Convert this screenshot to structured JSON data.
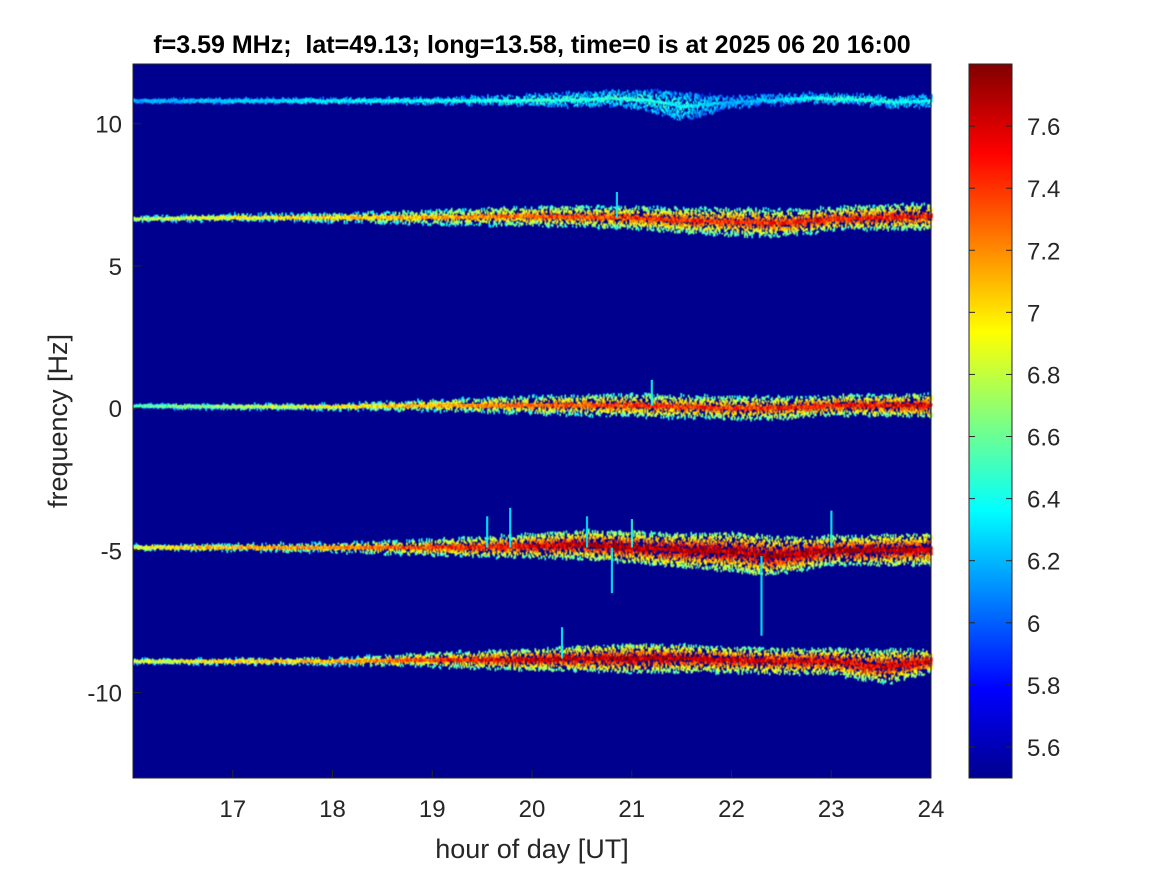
{
  "chart_data": {
    "type": "heatmap",
    "title": "f=3.59 MHz;  lat=49.13; long=13.58, time=0 is at 2025 06 20 16:00",
    "xlabel": "hour of day [UT]",
    "ylabel": "frequency [Hz]",
    "xlim": [
      16,
      24
    ],
    "ylim": [
      -13,
      12.1
    ],
    "xticks": [
      "17",
      "18",
      "19",
      "20",
      "21",
      "22",
      "23",
      "24"
    ],
    "yticks": [
      "-10",
      "-5",
      "0",
      "5",
      "10"
    ],
    "colormap": "jet",
    "background_color": "#00008f",
    "colorbar": {
      "range": [
        5.5,
        7.8
      ],
      "ticks": [
        "5.6",
        "5.8",
        "6",
        "6.2",
        "6.4",
        "6.6",
        "6.8",
        "7",
        "7.2",
        "7.4",
        "7.6"
      ]
    },
    "traces": [
      {
        "center_hz": 10.8,
        "points": [
          [
            16,
            10.8
          ],
          [
            17,
            10.8
          ],
          [
            18,
            10.8
          ],
          [
            19,
            10.8
          ],
          [
            20,
            10.82
          ],
          [
            20.5,
            10.85
          ],
          [
            20.8,
            10.9
          ],
          [
            21.2,
            10.8
          ],
          [
            21.5,
            10.6
          ],
          [
            21.8,
            10.7
          ],
          [
            22.2,
            10.8
          ],
          [
            22.8,
            10.9
          ],
          [
            23.3,
            10.85
          ],
          [
            23.6,
            10.75
          ],
          [
            24,
            10.8
          ]
        ],
        "intensity": [
          [
            16,
            6.2
          ],
          [
            17,
            6.3
          ],
          [
            18,
            6.4
          ],
          [
            19,
            6.4
          ],
          [
            20,
            6.5
          ],
          [
            21,
            6.5
          ],
          [
            21.6,
            6.4
          ],
          [
            22,
            6.2
          ],
          [
            22.5,
            6.3
          ],
          [
            23,
            6.5
          ],
          [
            24,
            6.4
          ]
        ],
        "width_hz": [
          [
            16,
            0.05
          ],
          [
            19,
            0.1
          ],
          [
            21,
            0.3
          ],
          [
            21.5,
            0.5
          ],
          [
            22,
            0.2
          ],
          [
            23,
            0.15
          ],
          [
            24,
            0.2
          ]
        ]
      },
      {
        "center_hz": 6.7,
        "points": [
          [
            16,
            6.65
          ],
          [
            17,
            6.7
          ],
          [
            18,
            6.7
          ],
          [
            19,
            6.7
          ],
          [
            20,
            6.75
          ],
          [
            21,
            6.7
          ],
          [
            21.5,
            6.6
          ],
          [
            22,
            6.55
          ],
          [
            22.5,
            6.5
          ],
          [
            23,
            6.65
          ],
          [
            23.5,
            6.7
          ],
          [
            24,
            6.75
          ]
        ],
        "intensity": [
          [
            16,
            6.8
          ],
          [
            17,
            7.0
          ],
          [
            18,
            7.1
          ],
          [
            19,
            7.2
          ],
          [
            20,
            7.4
          ],
          [
            21,
            7.5
          ],
          [
            22,
            7.5
          ],
          [
            23,
            7.6
          ],
          [
            24,
            7.6
          ]
        ],
        "width_hz": [
          [
            16,
            0.08
          ],
          [
            18,
            0.15
          ],
          [
            19.5,
            0.3
          ],
          [
            21,
            0.4
          ],
          [
            22.3,
            0.5
          ],
          [
            23,
            0.4
          ],
          [
            24,
            0.45
          ]
        ]
      },
      {
        "center_hz": 0.1,
        "points": [
          [
            16,
            0.08
          ],
          [
            17,
            0.05
          ],
          [
            18,
            0.05
          ],
          [
            19,
            0.1
          ],
          [
            20,
            0.1
          ],
          [
            21,
            0.1
          ],
          [
            21.5,
            0.05
          ],
          [
            22,
            0.0
          ],
          [
            22.5,
            0.0
          ],
          [
            23,
            0.1
          ],
          [
            24,
            0.1
          ]
        ],
        "intensity": [
          [
            16,
            6.6
          ],
          [
            17,
            6.8
          ],
          [
            18,
            7.0
          ],
          [
            19,
            7.2
          ],
          [
            20,
            7.4
          ],
          [
            21,
            7.5
          ],
          [
            22,
            7.5
          ],
          [
            23,
            7.6
          ],
          [
            24,
            7.7
          ]
        ],
        "width_hz": [
          [
            16,
            0.06
          ],
          [
            18,
            0.1
          ],
          [
            19.5,
            0.25
          ],
          [
            21,
            0.4
          ],
          [
            22.3,
            0.4
          ],
          [
            23,
            0.35
          ],
          [
            24,
            0.4
          ]
        ]
      },
      {
        "center_hz": -4.9,
        "points": [
          [
            16,
            -4.9
          ],
          [
            17,
            -4.9
          ],
          [
            18,
            -4.9
          ],
          [
            19,
            -4.9
          ],
          [
            20,
            -4.85
          ],
          [
            20.5,
            -4.8
          ],
          [
            21,
            -4.9
          ],
          [
            21.5,
            -5.0
          ],
          [
            22,
            -5.05
          ],
          [
            22.4,
            -5.2
          ],
          [
            23,
            -5.0
          ],
          [
            23.5,
            -5.0
          ],
          [
            24,
            -4.95
          ]
        ],
        "intensity": [
          [
            16,
            7.0
          ],
          [
            17,
            7.2
          ],
          [
            18,
            7.3
          ],
          [
            19,
            7.5
          ],
          [
            20,
            7.7
          ],
          [
            21,
            7.8
          ],
          [
            22,
            7.8
          ],
          [
            23,
            7.8
          ],
          [
            24,
            7.8
          ]
        ],
        "width_hz": [
          [
            16,
            0.08
          ],
          [
            18,
            0.15
          ],
          [
            19.5,
            0.35
          ],
          [
            20.5,
            0.5
          ],
          [
            21.5,
            0.6
          ],
          [
            22.3,
            0.7
          ],
          [
            23,
            0.5
          ],
          [
            24,
            0.55
          ]
        ]
      },
      {
        "center_hz": -8.9,
        "points": [
          [
            16,
            -8.9
          ],
          [
            17,
            -8.9
          ],
          [
            18,
            -8.9
          ],
          [
            19,
            -8.85
          ],
          [
            20,
            -8.85
          ],
          [
            20.5,
            -8.8
          ],
          [
            21,
            -8.8
          ],
          [
            21.5,
            -8.8
          ],
          [
            22,
            -8.85
          ],
          [
            22.5,
            -8.9
          ],
          [
            23,
            -8.9
          ],
          [
            23.5,
            -9.1
          ],
          [
            24,
            -8.9
          ]
        ],
        "intensity": [
          [
            16,
            6.9
          ],
          [
            17,
            7.1
          ],
          [
            18,
            7.2
          ],
          [
            19,
            7.5
          ],
          [
            20,
            7.7
          ],
          [
            21,
            7.8
          ],
          [
            22,
            7.7
          ],
          [
            23,
            7.7
          ],
          [
            24,
            7.7
          ]
        ],
        "width_hz": [
          [
            16,
            0.07
          ],
          [
            18,
            0.12
          ],
          [
            19.5,
            0.3
          ],
          [
            21,
            0.5
          ],
          [
            22,
            0.45
          ],
          [
            23,
            0.45
          ],
          [
            23.6,
            0.6
          ],
          [
            24,
            0.4
          ]
        ]
      }
    ],
    "spikes": [
      {
        "x": 19.55,
        "from_hz": -4.9,
        "to_hz": -3.8
      },
      {
        "x": 19.78,
        "from_hz": -4.9,
        "to_hz": -3.5
      },
      {
        "x": 20.55,
        "from_hz": -4.9,
        "to_hz": -3.8
      },
      {
        "x": 20.8,
        "from_hz": -4.9,
        "to_hz": -6.5
      },
      {
        "x": 21.0,
        "from_hz": -4.9,
        "to_hz": -3.9
      },
      {
        "x": 23.0,
        "from_hz": -4.9,
        "to_hz": -3.6
      },
      {
        "x": 22.3,
        "from_hz": -5.2,
        "to_hz": -8.0
      },
      {
        "x": 20.3,
        "from_hz": -8.8,
        "to_hz": -7.7
      },
      {
        "x": 21.2,
        "from_hz": 0.1,
        "to_hz": 1.0
      },
      {
        "x": 20.85,
        "from_hz": 6.7,
        "to_hz": 7.6
      }
    ]
  }
}
